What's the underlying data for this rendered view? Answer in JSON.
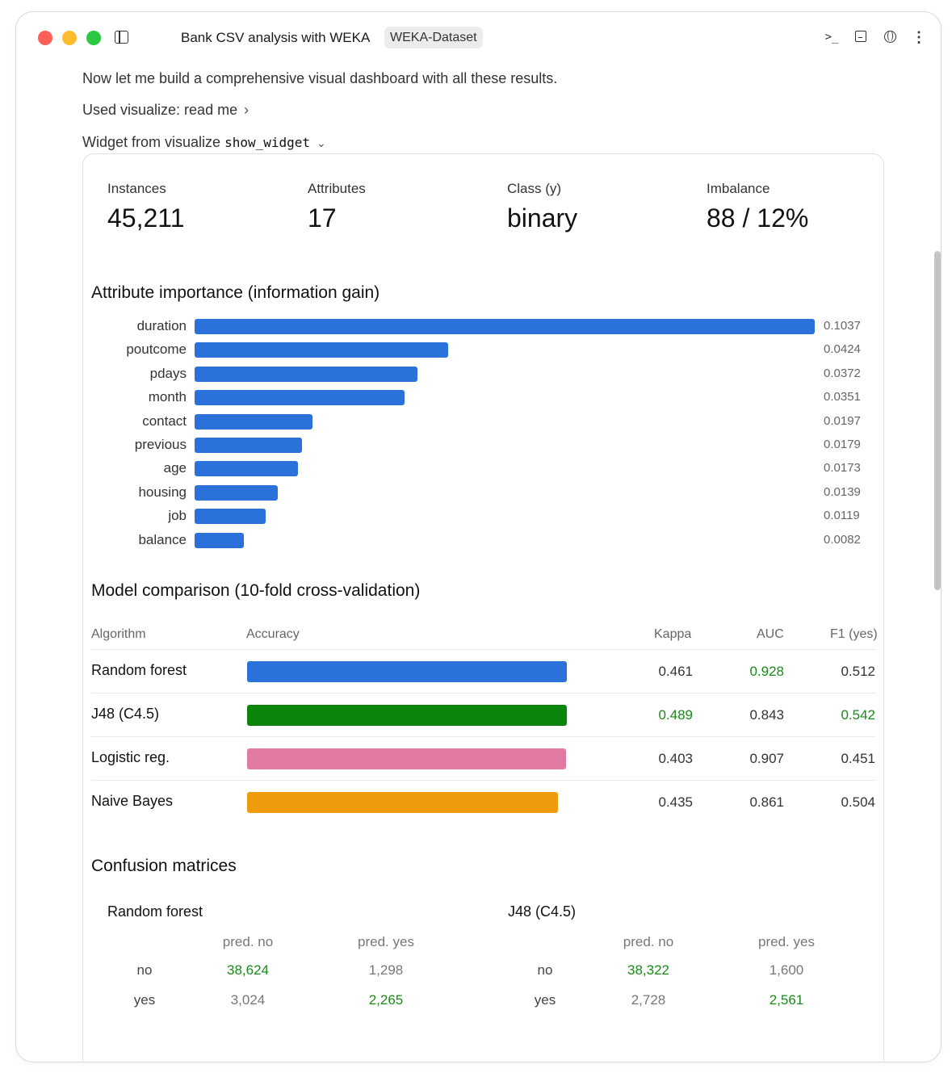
{
  "window": {
    "title": "Bank CSV analysis with WEKA",
    "badge": "WEKA-Dataset",
    "icons": [
      "sidebar-icon",
      "terminal-icon",
      "preview-icon",
      "globe-icon",
      "more-icon"
    ]
  },
  "intro": {
    "message": "Now let me build a comprehensive visual dashboard with all these results.",
    "used_visualize": "Used visualize: read me",
    "widget_prefix": "Widget from visualize ",
    "widget_code": "show_widget"
  },
  "stats": [
    {
      "label": "Instances",
      "value": "45,211"
    },
    {
      "label": "Attributes",
      "value": "17"
    },
    {
      "label": "Class (y)",
      "value": "binary"
    },
    {
      "label": "Imbalance",
      "value": "88 / 12%"
    }
  ],
  "attr_title": "Attribute importance (information gain)",
  "chart_data": {
    "type": "bar",
    "orientation": "horizontal",
    "title": "Attribute importance (information gain)",
    "categories": [
      "duration",
      "poutcome",
      "pdays",
      "month",
      "contact",
      "previous",
      "age",
      "housing",
      "job",
      "balance"
    ],
    "values": [
      0.1037,
      0.0424,
      0.0372,
      0.0351,
      0.0197,
      0.0179,
      0.0173,
      0.0139,
      0.0119,
      0.0082
    ],
    "value_labels": [
      "0.1037",
      "0.0424",
      "0.0372",
      "0.0351",
      "0.0197",
      "0.0179",
      "0.0173",
      "0.0139",
      "0.0119",
      "0.0082"
    ],
    "color": "#2a72d9"
  },
  "model_title": "Model comparison (10-fold cross-validation)",
  "model_table": {
    "headers": {
      "algorithm": "Algorithm",
      "accuracy": "Accuracy",
      "kappa": "Kappa",
      "auc": "AUC",
      "f1": "F1 (yes)"
    },
    "rows": [
      {
        "name": "Random forest",
        "accuracy_pct": 90.4,
        "color": "#2a72d9",
        "kappa": "0.461",
        "auc": "0.928",
        "f1": "0.512",
        "best": [
          "auc"
        ]
      },
      {
        "name": "J48 (C4.5)",
        "accuracy_pct": 90.4,
        "color": "#0a840a",
        "kappa": "0.489",
        "auc": "0.843",
        "f1": "0.542",
        "best": [
          "kappa",
          "f1"
        ]
      },
      {
        "name": "Logistic reg.",
        "accuracy_pct": 90.2,
        "color": "#e07aa3",
        "kappa": "0.403",
        "auc": "0.907",
        "f1": "0.451",
        "best": []
      },
      {
        "name": "Naive Bayes",
        "accuracy_pct": 88.0,
        "color": "#ee9c0c",
        "kappa": "0.435",
        "auc": "0.861",
        "f1": "0.504",
        "best": []
      }
    ]
  },
  "cm_title": "Confusion matrices",
  "confusion": [
    {
      "name": "Random forest",
      "col_heads": [
        "pred. no",
        "pred. yes"
      ],
      "rows": [
        {
          "label": "no",
          "cells": [
            "38,624",
            "1,298"
          ]
        },
        {
          "label": "yes",
          "cells": [
            "3,024",
            "2,265"
          ]
        }
      ]
    },
    {
      "name": "J48 (C4.5)",
      "col_heads": [
        "pred. no",
        "pred. yes"
      ],
      "rows": [
        {
          "label": "no",
          "cells": [
            "38,322",
            "1,600"
          ]
        },
        {
          "label": "yes",
          "cells": [
            "2,728",
            "2,561"
          ]
        }
      ]
    }
  ]
}
